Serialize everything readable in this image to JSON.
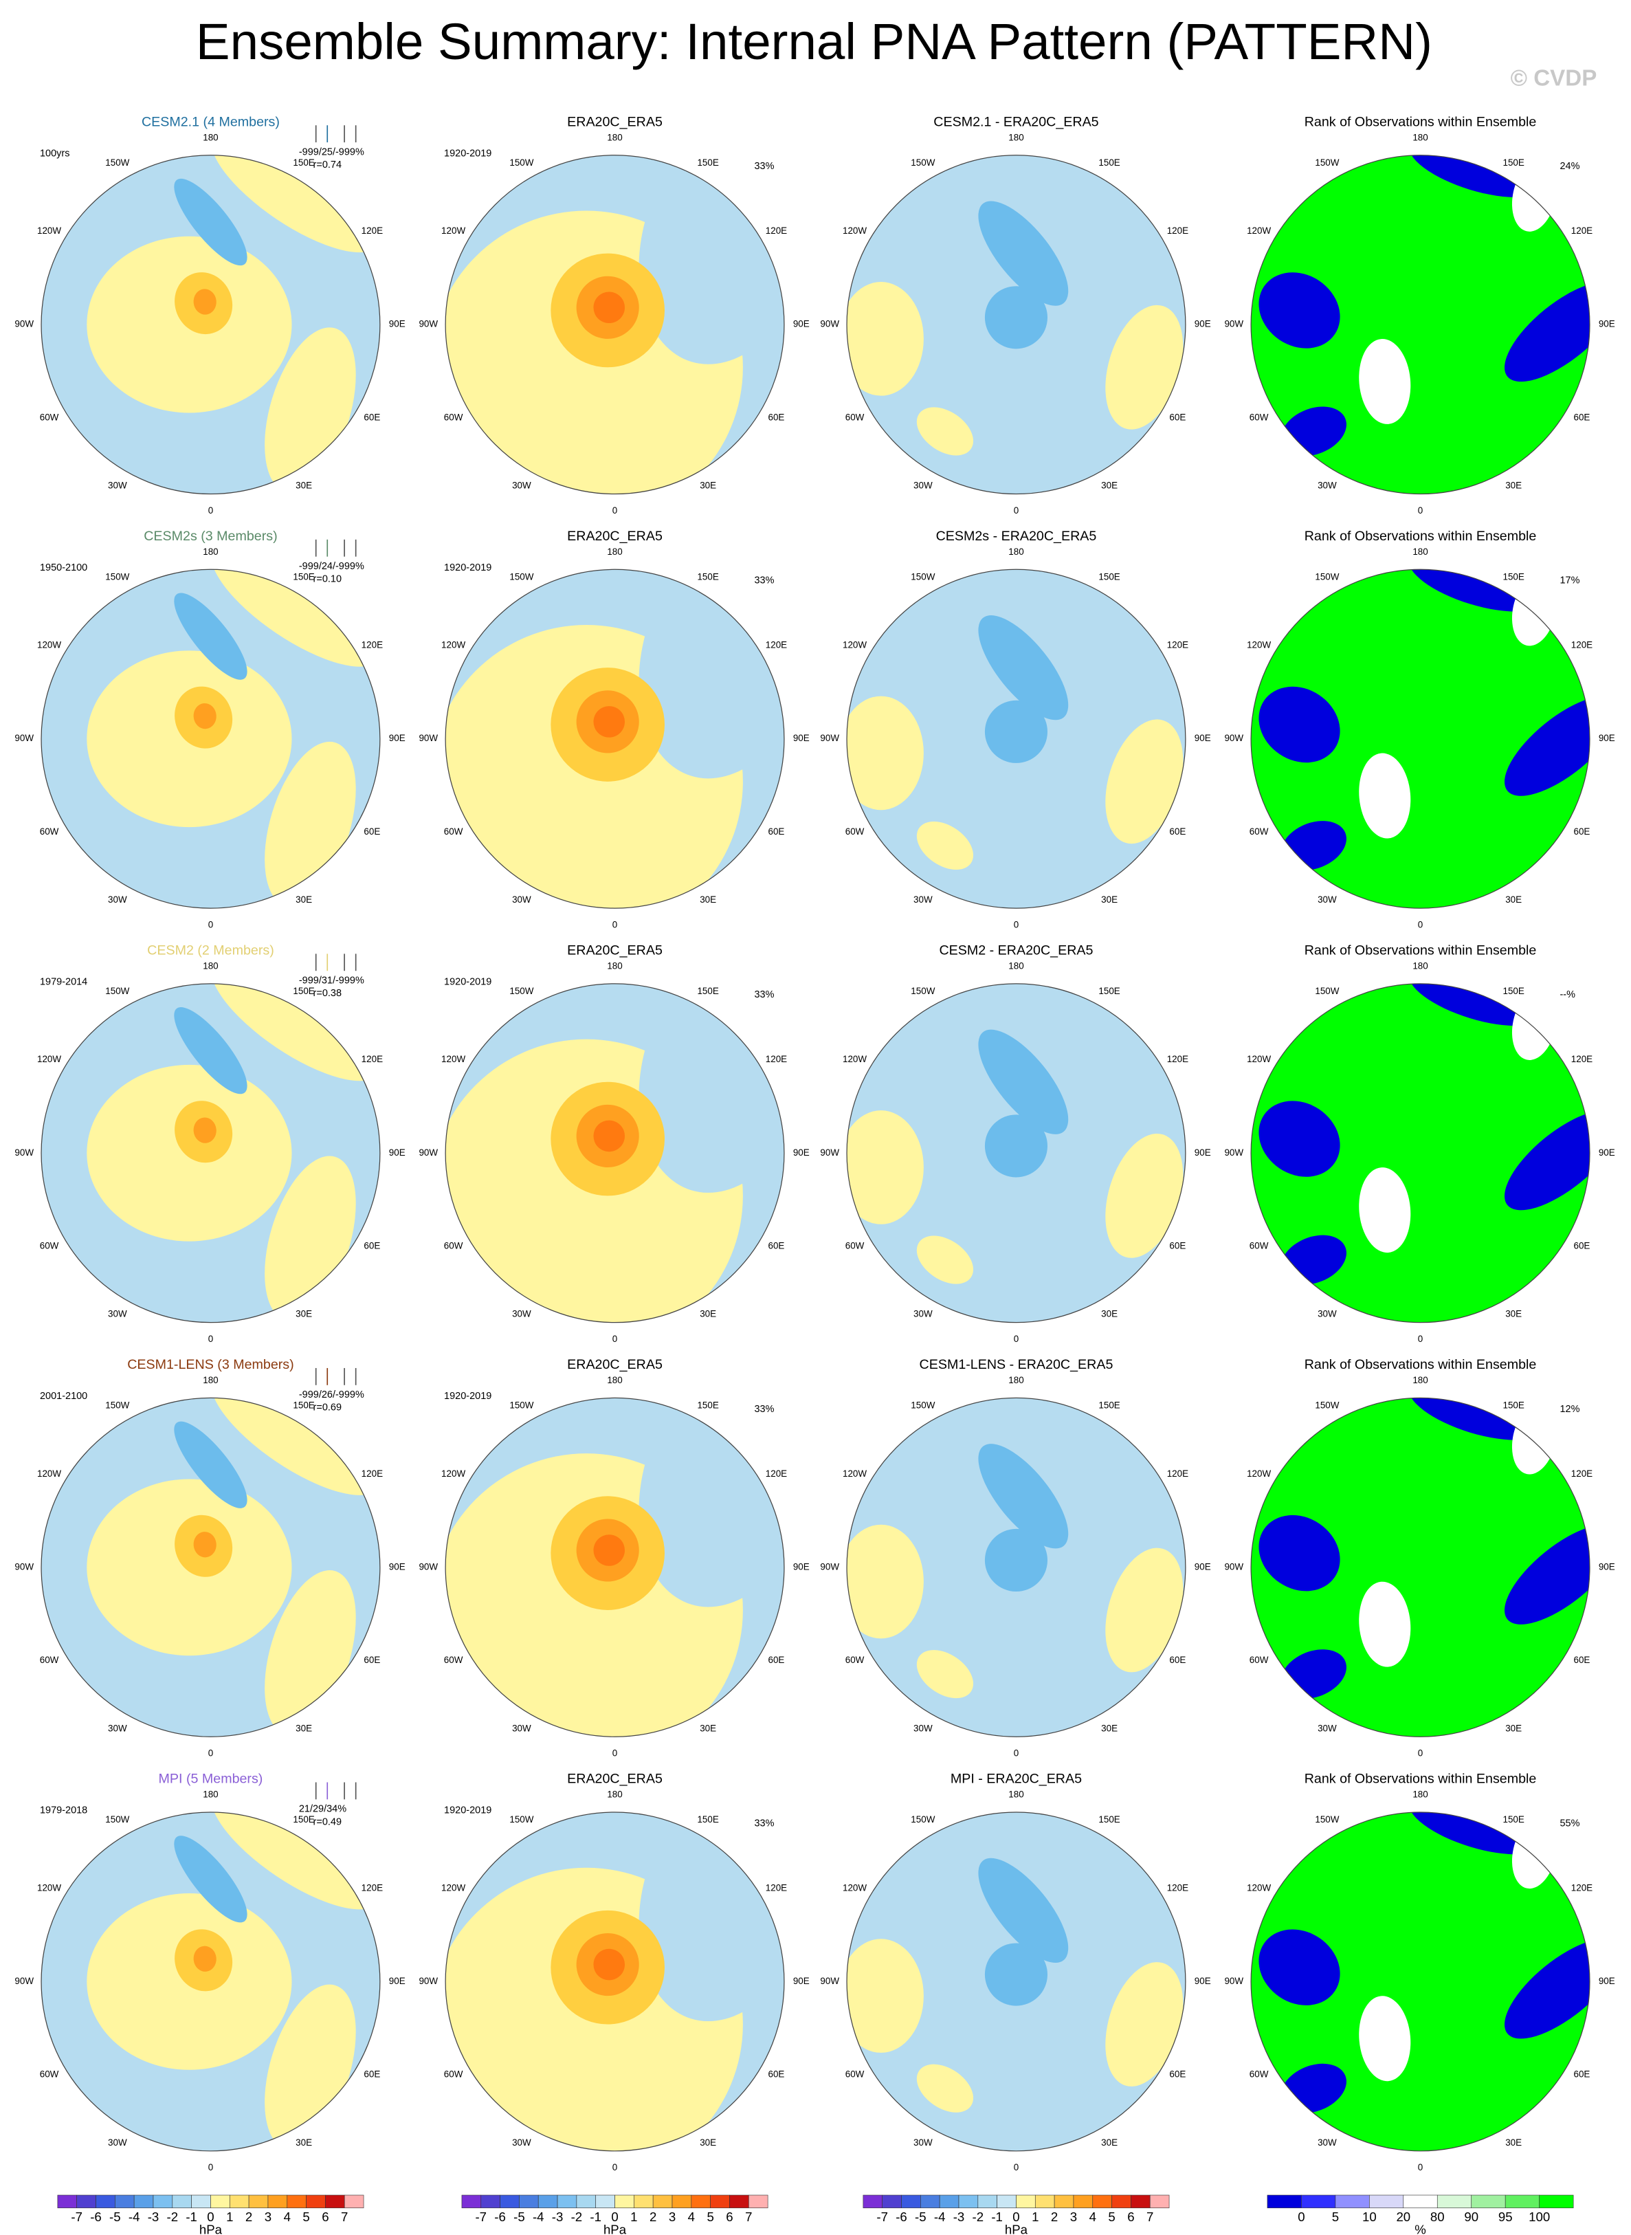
{
  "header": {
    "title": "Ensemble Summary: Internal PNA Pattern (PATTERN)",
    "watermark": "© CVDP"
  },
  "longitude_labels": [
    "180",
    "150E",
    "120E",
    "90E",
    "60E",
    "30E",
    "0",
    "30W",
    "60W",
    "90W",
    "120W",
    "150W"
  ],
  "rows": [
    {
      "model": {
        "title": "CESM2.1 (4 Members)",
        "color": "#1f6f9f",
        "period": "100yrs",
        "stats": "-999/25/-999%",
        "r": "r=0.74"
      },
      "observed": {
        "title": "ERA20C_ERA5",
        "period": "1920-2019",
        "percent": "33%"
      },
      "difference": {
        "title": "CESM2.1 - ERA20C_ERA5"
      },
      "rank": {
        "title": "Rank of Observations within Ensemble",
        "percent": "24%"
      }
    },
    {
      "model": {
        "title": "CESM2s (3 Members)",
        "color": "#5a8a68",
        "period": "1950-2100",
        "stats": "-999/24/-999%",
        "r": "r=0.10"
      },
      "observed": {
        "title": "ERA20C_ERA5",
        "period": "1920-2019",
        "percent": "33%"
      },
      "difference": {
        "title": "CESM2s - ERA20C_ERA5"
      },
      "rank": {
        "title": "Rank of Observations within Ensemble",
        "percent": "17%"
      }
    },
    {
      "model": {
        "title": "CESM2 (2 Members)",
        "color": "#e2cf72",
        "period": "1979-2014",
        "stats": "-999/31/-999%",
        "r": "r=0.38"
      },
      "observed": {
        "title": "ERA20C_ERA5",
        "period": "1920-2019",
        "percent": "33%"
      },
      "difference": {
        "title": "CESM2 - ERA20C_ERA5"
      },
      "rank": {
        "title": "Rank of Observations within Ensemble",
        "percent": "--%"
      }
    },
    {
      "model": {
        "title": "CESM1-LENS (3 Members)",
        "color": "#8b3a0f",
        "period": "2001-2100",
        "stats": "-999/26/-999%",
        "r": "r=0.69"
      },
      "observed": {
        "title": "ERA20C_ERA5",
        "period": "1920-2019",
        "percent": "33%"
      },
      "difference": {
        "title": "CESM1-LENS - ERA20C_ERA5"
      },
      "rank": {
        "title": "Rank of Observations within Ensemble",
        "percent": "12%"
      }
    },
    {
      "model": {
        "title": "MPI (5 Members)",
        "color": "#8a5fd6",
        "period": "1979-2018",
        "stats": "21/29/34%",
        "r": "r=0.49"
      },
      "observed": {
        "title": "ERA20C_ERA5",
        "period": "1920-2019",
        "percent": "33%"
      },
      "difference": {
        "title": "MPI - ERA20C_ERA5"
      },
      "rank": {
        "title": "Rank of Observations within Ensemble",
        "percent": "55%"
      }
    }
  ],
  "colorbars": [
    {
      "labels": [
        "-7",
        "-6",
        "-5",
        "-4",
        "-3",
        "-2",
        "-1",
        "0",
        "1",
        "2",
        "3",
        "4",
        "5",
        "6",
        "7"
      ],
      "unit": "hPa"
    },
    {
      "labels": [
        "-7",
        "-6",
        "-5",
        "-4",
        "-3",
        "-2",
        "-1",
        "0",
        "1",
        "2",
        "3",
        "4",
        "5",
        "6",
        "7"
      ],
      "unit": "hPa"
    },
    {
      "labels": [
        "-7",
        "-6",
        "-5",
        "-4",
        "-3",
        "-2",
        "-1",
        "0",
        "1",
        "2",
        "3",
        "4",
        "5",
        "6",
        "7"
      ],
      "unit": "hPa"
    },
    {
      "labels": [
        "0",
        "5",
        "10",
        "20",
        "80",
        "90",
        "95",
        "100"
      ],
      "unit": "%"
    }
  ]
}
